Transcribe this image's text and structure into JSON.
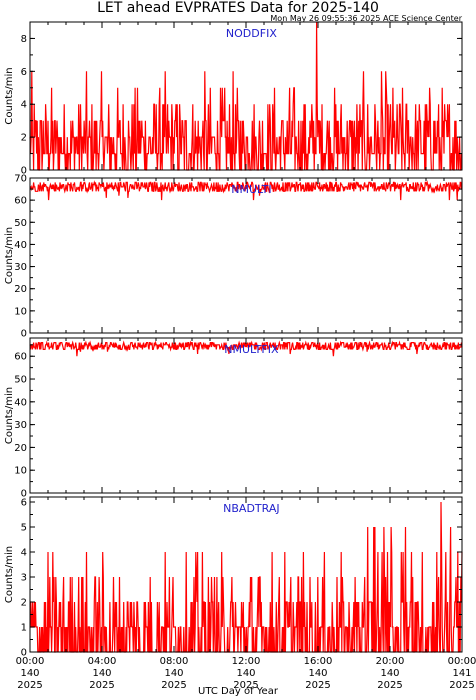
{
  "header": {
    "title": "LET ahead EVPRATES Data for 2025-140",
    "timestamp": "Mon May 26 09:55:36 2025 ACE Science Center"
  },
  "footer": {
    "xlabel": "UTC Day of Year"
  },
  "colors": {
    "series": "#ff0000",
    "panel_label": "#2222cc",
    "axes": "#000000"
  },
  "chart_data": [
    {
      "type": "line",
      "name": "NODDFIX",
      "ylabel": "Counts/min",
      "ylim": [
        0,
        9
      ],
      "yticks": [
        0,
        2,
        4,
        6,
        8
      ],
      "xlim": [
        0,
        24
      ],
      "xticks": [
        {
          "hours": 0,
          "time": "00:00",
          "doy": "140",
          "year": "2025"
        },
        {
          "hours": 4,
          "time": "04:00",
          "doy": "140",
          "year": "2025"
        },
        {
          "hours": 8,
          "time": "08:00",
          "doy": "140",
          "year": "2025"
        },
        {
          "hours": 12,
          "time": "12:00",
          "doy": "140",
          "year": "2025"
        },
        {
          "hours": 16,
          "time": "16:00",
          "doy": "140",
          "year": "2025"
        },
        {
          "hours": 20,
          "time": "20:00",
          "doy": "140",
          "year": "2025"
        },
        {
          "hours": 24,
          "time": "00:00",
          "doy": "141",
          "year": "2025"
        }
      ],
      "series_summary": {
        "typical_low": 0,
        "typical_high": 3,
        "peak_value": 9,
        "peak_hour": 15.9
      }
    },
    {
      "type": "line",
      "name": "NMULTI",
      "ylabel": "Counts/min",
      "ylim": [
        0,
        70
      ],
      "yticks": [
        0,
        10,
        20,
        30,
        40,
        50,
        60,
        70
      ],
      "xlim": [
        0,
        24
      ],
      "series_summary": {
        "typical_low": 64,
        "typical_high": 68,
        "min_value": 60
      }
    },
    {
      "type": "line",
      "name": "NMULTFIX",
      "ylabel": "Counts/min",
      "ylim": [
        0,
        68
      ],
      "yticks": [
        0,
        10,
        20,
        30,
        40,
        50,
        60
      ],
      "xlim": [
        0,
        24
      ],
      "series_summary": {
        "typical_low": 63,
        "typical_high": 66,
        "min_value": 60
      }
    },
    {
      "type": "line",
      "name": "NBADTRAJ",
      "ylabel": "Counts/min",
      "ylim": [
        0,
        6.2
      ],
      "yticks": [
        0,
        1,
        2,
        3,
        4,
        5,
        6
      ],
      "xlim": [
        0,
        24
      ],
      "series_summary": {
        "typical_low": 0,
        "typical_high": 2,
        "peak_value": 6,
        "peak_hour": 22.8
      }
    }
  ]
}
